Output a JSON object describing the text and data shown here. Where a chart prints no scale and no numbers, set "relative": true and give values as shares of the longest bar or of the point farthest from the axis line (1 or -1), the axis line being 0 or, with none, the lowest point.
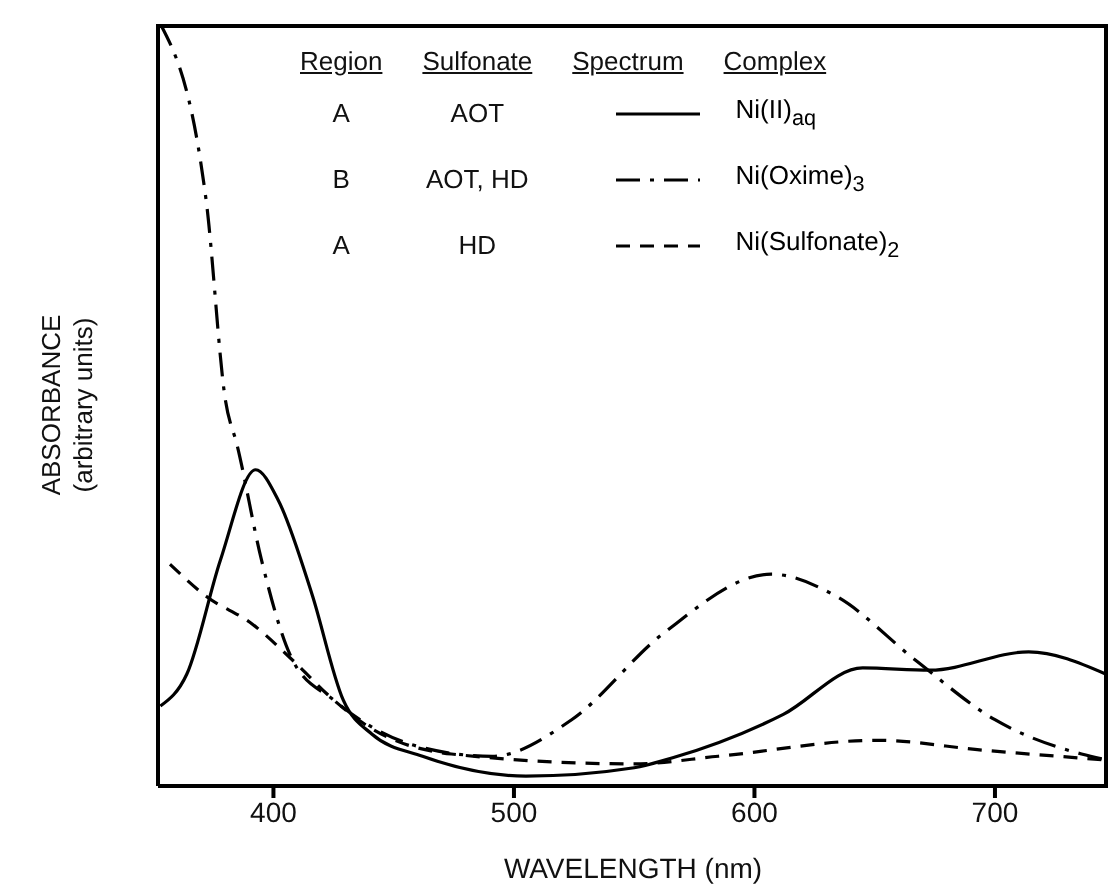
{
  "chart_data": {
    "type": "line",
    "relative": true,
    "xlabel": "WAVELENGTH  (nm)",
    "ylabel": "ABSORBANCE\n(arbitrary units)",
    "xlim": [
      352,
      747
    ],
    "xticks": [
      400,
      500,
      600,
      700
    ],
    "legend": "top",
    "grid": false,
    "marker": "none",
    "annotations": [
      "Region",
      "Sulfonate",
      "Spectrum",
      "Complex",
      "A",
      "AOT",
      "B",
      "AOT, HD",
      "A",
      "HD"
    ],
    "series": [
      {
        "name": "Ni(II)$_{aq}$",
        "color": "#000000",
        "line_style": "solid",
        "x": [
          353,
          364,
          378,
          392.6,
          402,
          416,
          429,
          441,
          462,
          505,
          550,
          566,
          612,
          645,
          673,
          714,
          746
        ],
        "values": [
          0.105,
          0.147,
          0.297,
          0.415,
          0.375,
          0.252,
          0.113,
          0.068,
          0.039,
          0.013,
          0.024,
          0.037,
          0.094,
          0.155,
          0.152,
          0.176,
          0.147
        ]
      },
      {
        "name": "Ni(Oxime)$_{3}$",
        "color": "#000000",
        "line_style": "dashdot",
        "x": [
          353,
          372,
          380,
          385,
          395,
          408,
          425,
          460,
          491,
          524,
          562,
          607,
          634,
          667,
          700,
          736,
          747
        ],
        "values": [
          1.0,
          0.769,
          0.507,
          0.446,
          0.297,
          0.165,
          0.113,
          0.052,
          0.039,
          0.087,
          0.2,
          0.278,
          0.249,
          0.165,
          0.087,
          0.042,
          0.034
        ]
      },
      {
        "name": "Ni(Sulfonate)$_{2}$",
        "color": "#000000",
        "line_style": "dashed",
        "x": [
          357,
          372,
          391,
          408,
          425,
          438,
          474,
          550,
          585,
          651,
          695,
          747
        ],
        "values": [
          0.291,
          0.249,
          0.213,
          0.165,
          0.113,
          0.081,
          0.042,
          0.029,
          0.039,
          0.06,
          0.047,
          0.034
        ]
      }
    ]
  }
}
